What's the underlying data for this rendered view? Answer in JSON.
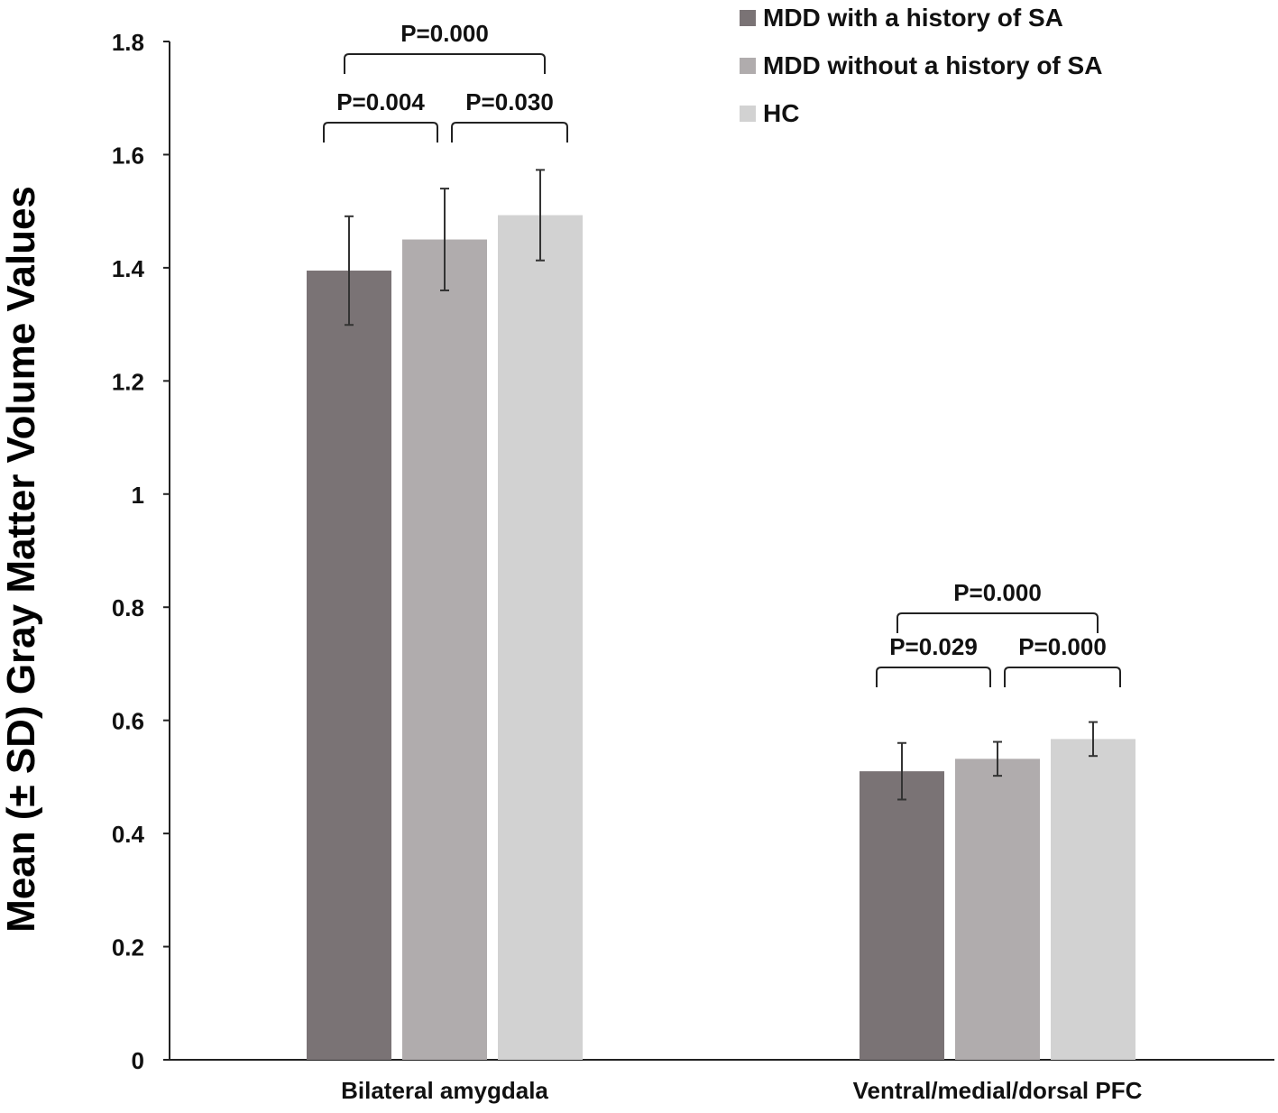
{
  "chart_data": {
    "type": "bar",
    "title": "",
    "xlabel": "",
    "ylabel": "Mean (± SD)  Gray Matter Volume Values",
    "ylim": [
      0,
      1.8
    ],
    "yticks": [
      "0",
      "0.2",
      "0.4",
      "0.6",
      "0.8",
      "1",
      "1.2",
      "1.4",
      "1.6",
      "1.8"
    ],
    "grid": false,
    "legend_position": "top-right",
    "categories": [
      "Bilateral amygdala",
      "Ventral/medial/dorsal PFC"
    ],
    "series": [
      {
        "name": "MDD with a history of SA",
        "color": "#7a7375",
        "values": [
          1.395,
          0.51
        ],
        "sd": [
          0.096,
          0.05
        ]
      },
      {
        "name": "MDD without a history of SA",
        "color": "#b0acad",
        "values": [
          1.45,
          0.532
        ],
        "sd": [
          0.09,
          0.03
        ]
      },
      {
        "name": "HC",
        "color": "#d2d2d2",
        "values": [
          1.493,
          0.567
        ],
        "sd": [
          0.08,
          0.03
        ]
      }
    ],
    "annotations": [
      {
        "category": 0,
        "from": 0,
        "to": 1,
        "label": "P=0.004"
      },
      {
        "category": 0,
        "from": 1,
        "to": 2,
        "label": "P=0.030"
      },
      {
        "category": 0,
        "from": 0,
        "to": 2,
        "label": "P=0.000"
      },
      {
        "category": 1,
        "from": 0,
        "to": 1,
        "label": "P=0.029"
      },
      {
        "category": 1,
        "from": 1,
        "to": 2,
        "label": "P=0.000"
      },
      {
        "category": 1,
        "from": 0,
        "to": 2,
        "label": "P=0.000"
      }
    ]
  }
}
